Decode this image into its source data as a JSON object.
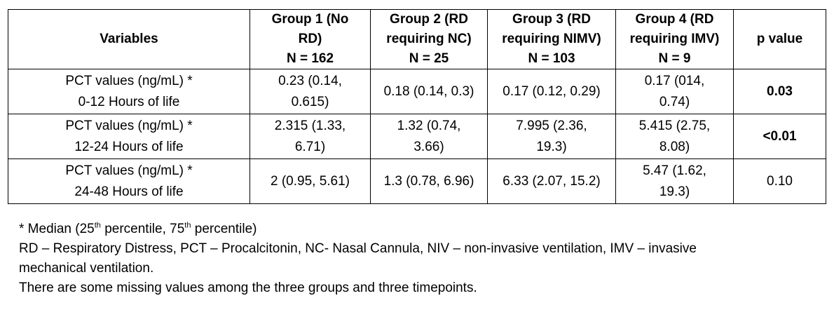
{
  "table": {
    "headers": [
      {
        "lines": [
          "Variables"
        ]
      },
      {
        "lines": [
          "Group 1 (No",
          "RD)",
          "N = 162"
        ]
      },
      {
        "lines": [
          "Group 2 (RD",
          "requiring NC)",
          "N = 25"
        ]
      },
      {
        "lines": [
          "Group 3 (RD",
          "requiring NIMV)",
          "N = 103"
        ]
      },
      {
        "lines": [
          "Group 4 (RD",
          "requiring IMV)",
          "N = 9"
        ]
      },
      {
        "lines": [
          "p value"
        ]
      }
    ],
    "rows": [
      {
        "variable": [
          "PCT values (ng/mL) *",
          "0-12 Hours of life"
        ],
        "g1": [
          "0.23 (0.14,",
          "0.615)"
        ],
        "g2": [
          "0.18 (0.14, 0.3)"
        ],
        "g3": [
          "0.17 (0.12, 0.29)"
        ],
        "g4": [
          "0.17 (014,",
          "0.74)"
        ],
        "p": "0.03",
        "p_bold": true
      },
      {
        "variable": [
          "PCT values (ng/mL) *",
          "12-24 Hours of life"
        ],
        "g1": [
          "2.315 (1.33,",
          "6.71)"
        ],
        "g2": [
          "1.32 (0.74,",
          "3.66)"
        ],
        "g3": [
          "7.995 (2.36,",
          "19.3)"
        ],
        "g4": [
          "5.415 (2.75,",
          "8.08)"
        ],
        "p": "<0.01",
        "p_bold": true
      },
      {
        "variable": [
          "PCT values (ng/mL) *",
          "24-48 Hours of life"
        ],
        "g1": [
          "2 (0.95, 5.61)"
        ],
        "g2": [
          "1.3 (0.78, 6.96)"
        ],
        "g3": [
          "6.33 (2.07, 15.2)"
        ],
        "g4": [
          "5.47 (1.62,",
          "19.3)"
        ],
        "p": "0.10",
        "p_bold": false
      }
    ]
  },
  "notes": {
    "median_prefix": "* Median (25",
    "sup_1": "th",
    "median_middle": " percentile, 75",
    "sup_2": "th",
    "median_suffix": " percentile)",
    "abbreviations_line1": "RD – Respiratory Distress, PCT – Procalcitonin, NC- Nasal Cannula, NIV – non-invasive ventilation, IMV – invasive",
    "abbreviations_line2": "mechanical ventilation.",
    "missing_values": "There are some missing values among the three groups and three timepoints."
  }
}
